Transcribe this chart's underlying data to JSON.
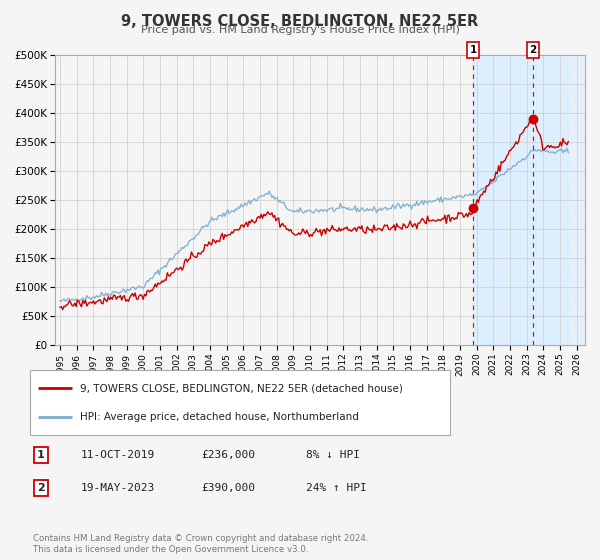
{
  "title": "9, TOWERS CLOSE, BEDLINGTON, NE22 5ER",
  "subtitle": "Price paid vs. HM Land Registry's House Price Index (HPI)",
  "ylim": [
    0,
    500000
  ],
  "xlim_start": 1994.7,
  "xlim_end": 2026.5,
  "yticks": [
    0,
    50000,
    100000,
    150000,
    200000,
    250000,
    300000,
    350000,
    400000,
    450000,
    500000
  ],
  "ytick_labels": [
    "£0",
    "£50K",
    "£100K",
    "£150K",
    "£200K",
    "£250K",
    "£300K",
    "£350K",
    "£400K",
    "£450K",
    "£500K"
  ],
  "xticks": [
    1995,
    1996,
    1997,
    1998,
    1999,
    2000,
    2001,
    2002,
    2003,
    2004,
    2005,
    2006,
    2007,
    2008,
    2009,
    2010,
    2011,
    2012,
    2013,
    2014,
    2015,
    2016,
    2017,
    2018,
    2019,
    2020,
    2021,
    2022,
    2023,
    2024,
    2025,
    2026
  ],
  "sale1_x": 2019.79,
  "sale1_y": 236000,
  "sale2_x": 2023.38,
  "sale2_y": 390000,
  "shade_start": 2019.79,
  "shade_end": 2025.5,
  "hatch_start": 2025.5,
  "hatch_end": 2026.5,
  "red_line_color": "#cc0000",
  "blue_line_color": "#7aadcf",
  "shade_color": "#ddeeff",
  "grid_color": "#cccccc",
  "background_color": "#f5f5f5",
  "chart_bg": "#f5f5f5",
  "legend_label1": "9, TOWERS CLOSE, BEDLINGTON, NE22 5ER (detached house)",
  "legend_label2": "HPI: Average price, detached house, Northumberland",
  "annot1_label": "1",
  "annot1_date": "11-OCT-2019",
  "annot1_price": "£236,000",
  "annot1_hpi": "8% ↓ HPI",
  "annot2_label": "2",
  "annot2_date": "19-MAY-2023",
  "annot2_price": "£390,000",
  "annot2_hpi": "24% ↑ HPI",
  "footer1": "Contains HM Land Registry data © Crown copyright and database right 2024.",
  "footer2": "This data is licensed under the Open Government Licence v3.0."
}
